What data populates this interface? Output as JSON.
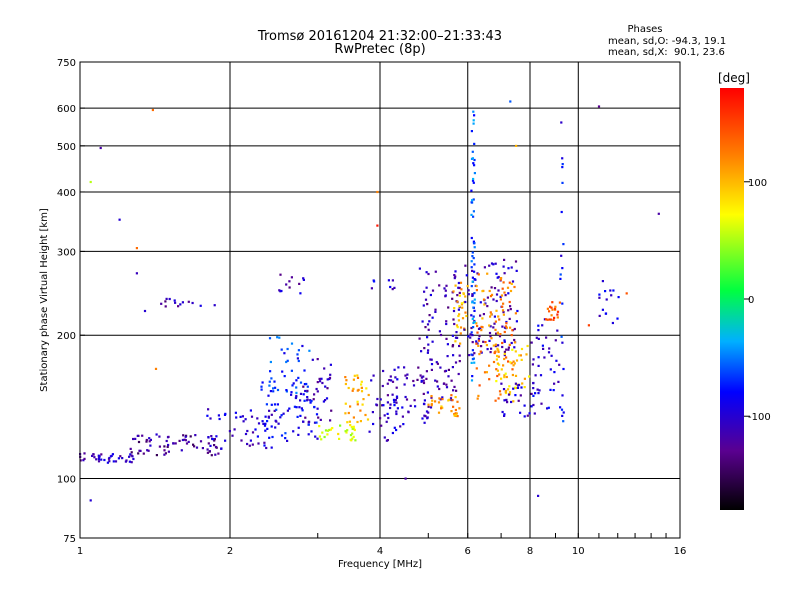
{
  "chart_data": {
    "type": "scatter",
    "title": "Tromsø 20161204 21:32:00–21:33:43",
    "subtitle": "RwPretec (8p)",
    "stats": {
      "heading": "Phases",
      "line_o": "mean, sd,O: -94.3, 19.1",
      "line_x": "mean, sd,X:  90.1, 23.6"
    },
    "xlabel": "Frequency [MHz]",
    "ylabel": "Stationary phase Virtual Height [km]",
    "x_scale": "log",
    "y_scale": "log",
    "xlim": [
      1,
      16
    ],
    "ylim": [
      75,
      750
    ],
    "x_ticks": [
      1,
      2,
      4,
      6,
      8,
      10,
      16
    ],
    "x_tick_labels": [
      "1",
      "2",
      "4",
      "6",
      "8",
      "10",
      "16"
    ],
    "y_ticks": [
      75,
      100,
      200,
      300,
      400,
      500,
      600,
      750
    ],
    "y_tick_labels": [
      "75",
      "100",
      "200",
      "300",
      "400",
      "500",
      "600",
      "750"
    ],
    "grid": true,
    "colorbar": {
      "label": "[deg]",
      "range": [
        -180,
        180
      ],
      "ticks": [
        -100,
        0,
        100
      ],
      "tick_labels": [
        "-100",
        "0",
        "100"
      ]
    },
    "clusters": [
      {
        "x0": 1.0,
        "x1": 1.3,
        "y0": 108,
        "y1": 113,
        "phase": -110,
        "n": 40
      },
      {
        "x0": 1.25,
        "x1": 1.9,
        "y0": 112,
        "y1": 124,
        "phase": -125,
        "n": 70
      },
      {
        "x0": 1.8,
        "x1": 2.5,
        "y0": 115,
        "y1": 140,
        "phase": -100,
        "n": 55
      },
      {
        "x0": 2.3,
        "x1": 3.0,
        "y0": 120,
        "y1": 160,
        "phase": -80,
        "n": 70
      },
      {
        "x0": 2.4,
        "x1": 2.9,
        "y0": 150,
        "y1": 200,
        "phase": -70,
        "n": 35
      },
      {
        "x0": 2.8,
        "x1": 3.2,
        "y0": 130,
        "y1": 180,
        "phase": -110,
        "n": 35
      },
      {
        "x0": 3.0,
        "x1": 3.6,
        "y0": 120,
        "y1": 130,
        "phase": 60,
        "n": 30
      },
      {
        "x0": 3.4,
        "x1": 3.8,
        "y0": 130,
        "y1": 165,
        "phase": 100,
        "n": 35
      },
      {
        "x0": 3.8,
        "x1": 4.4,
        "y0": 120,
        "y1": 170,
        "phase": -105,
        "n": 45
      },
      {
        "x0": 4.3,
        "x1": 5.0,
        "y0": 130,
        "y1": 175,
        "phase": -110,
        "n": 40
      },
      {
        "x0": 4.8,
        "x1": 5.8,
        "y0": 140,
        "y1": 280,
        "phase": -115,
        "n": 110
      },
      {
        "x0": 5.0,
        "x1": 5.8,
        "y0": 135,
        "y1": 150,
        "phase": 110,
        "n": 30
      },
      {
        "x0": 5.6,
        "x1": 6.0,
        "y0": 190,
        "y1": 260,
        "phase": 100,
        "n": 30
      },
      {
        "x0": 5.9,
        "x1": 7.6,
        "y0": 180,
        "y1": 290,
        "phase": -110,
        "n": 110
      },
      {
        "x0": 6.2,
        "x1": 7.5,
        "y0": 145,
        "y1": 270,
        "phase": 120,
        "n": 100
      },
      {
        "x0": 6.8,
        "x1": 8.0,
        "y0": 150,
        "y1": 190,
        "phase": 90,
        "n": 40
      },
      {
        "x0": 7.0,
        "x1": 8.2,
        "y0": 135,
        "y1": 160,
        "phase": -105,
        "n": 30
      },
      {
        "x0": 8.0,
        "x1": 9.2,
        "y0": 140,
        "y1": 220,
        "phase": -100,
        "n": 40
      },
      {
        "x0": 8.6,
        "x1": 9.2,
        "y0": 215,
        "y1": 235,
        "phase": 140,
        "n": 20
      },
      {
        "x0": 11.0,
        "x1": 12.2,
        "y0": 210,
        "y1": 250,
        "phase": -100,
        "n": 14
      },
      {
        "x0": 6.1,
        "x1": 6.2,
        "y0": 160,
        "y1": 650,
        "phase": -60,
        "n": 60
      },
      {
        "x0": 9.2,
        "x1": 9.35,
        "y0": 130,
        "y1": 600,
        "phase": -80,
        "n": 20
      },
      {
        "x0": 1.4,
        "x1": 1.9,
        "y0": 230,
        "y1": 240,
        "phase": -115,
        "n": 14
      },
      {
        "x0": 2.5,
        "x1": 2.85,
        "y0": 245,
        "y1": 270,
        "phase": -110,
        "n": 12
      },
      {
        "x0": 3.8,
        "x1": 4.3,
        "y0": 250,
        "y1": 262,
        "phase": -100,
        "n": 8
      }
    ],
    "points": [
      {
        "x": 1.05,
        "y": 90,
        "phase": -100
      },
      {
        "x": 1.05,
        "y": 420,
        "phase": 50
      },
      {
        "x": 1.1,
        "y": 495,
        "phase": -120
      },
      {
        "x": 1.2,
        "y": 350,
        "phase": -100
      },
      {
        "x": 1.3,
        "y": 305,
        "phase": 130
      },
      {
        "x": 1.3,
        "y": 270,
        "phase": -110
      },
      {
        "x": 1.35,
        "y": 225,
        "phase": -100
      },
      {
        "x": 1.4,
        "y": 595,
        "phase": 130
      },
      {
        "x": 1.42,
        "y": 170,
        "phase": 120
      },
      {
        "x": 3.95,
        "y": 400,
        "phase": 120
      },
      {
        "x": 3.95,
        "y": 340,
        "phase": 170
      },
      {
        "x": 4.5,
        "y": 100,
        "phase": -120
      },
      {
        "x": 7.3,
        "y": 620,
        "phase": -60
      },
      {
        "x": 7.5,
        "y": 500,
        "phase": 100
      },
      {
        "x": 8.3,
        "y": 92,
        "phase": -100
      },
      {
        "x": 11.0,
        "y": 605,
        "phase": -130
      },
      {
        "x": 11.2,
        "y": 260,
        "phase": -100
      },
      {
        "x": 12.5,
        "y": 245,
        "phase": 140
      },
      {
        "x": 14.5,
        "y": 360,
        "phase": -120
      },
      {
        "x": 10.5,
        "y": 210,
        "phase": 150
      }
    ]
  }
}
